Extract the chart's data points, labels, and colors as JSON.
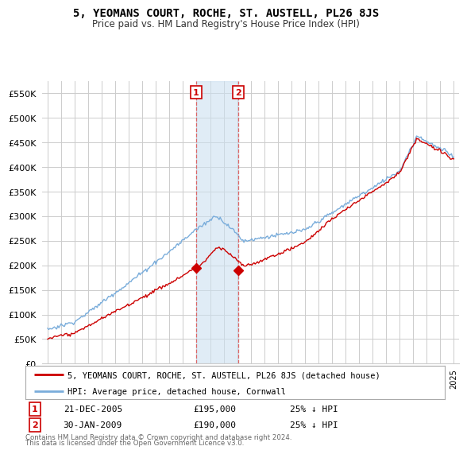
{
  "title": "5, YEOMANS COURT, ROCHE, ST. AUSTELL, PL26 8JS",
  "subtitle": "Price paid vs. HM Land Registry's House Price Index (HPI)",
  "ylim": [
    0,
    575000
  ],
  "yticks": [
    0,
    50000,
    100000,
    150000,
    200000,
    250000,
    300000,
    350000,
    400000,
    450000,
    500000,
    550000
  ],
  "ytick_labels": [
    "£0",
    "£50K",
    "£100K",
    "£150K",
    "£200K",
    "£250K",
    "£300K",
    "£350K",
    "£400K",
    "£450K",
    "£500K",
    "£550K"
  ],
  "hpi_color": "#7aaddb",
  "price_color": "#cc0000",
  "bg_color": "#ffffff",
  "grid_color": "#cccccc",
  "legend_label_price": "5, YEOMANS COURT, ROCHE, ST. AUSTELL, PL26 8JS (detached house)",
  "legend_label_hpi": "HPI: Average price, detached house, Cornwall",
  "transaction1_date": "21-DEC-2005",
  "transaction1_price": "£195,000",
  "transaction1_note": "25% ↓ HPI",
  "transaction2_date": "30-JAN-2009",
  "transaction2_price": "£190,000",
  "transaction2_note": "25% ↓ HPI",
  "footer": "Contains HM Land Registry data © Crown copyright and database right 2024.\nThis data is licensed under the Open Government Licence v3.0.",
  "shade_x_start": 2005.97,
  "shade_x_end": 2009.08,
  "marker1_x": 2005.97,
  "marker1_y": 195000,
  "marker2_x": 2009.08,
  "marker2_y": 190000,
  "xlim_start": 1994.6,
  "xlim_end": 2025.4
}
